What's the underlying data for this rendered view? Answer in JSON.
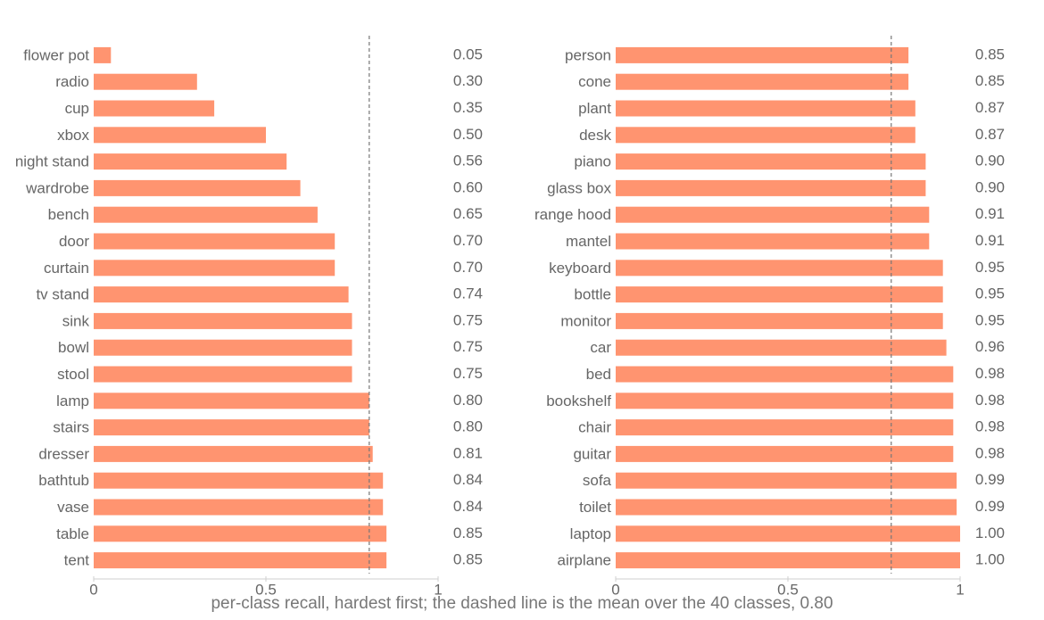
{
  "colors": {
    "bar": "#ff9470",
    "text": "#666666",
    "mean_line": "#777777",
    "axis": "#cfcfcf"
  },
  "caption": "per-class recall, hardest first; the dashed line is the mean over the 40 classes, 0.80",
  "chart_data": [
    {
      "type": "bar",
      "orientation": "horizontal",
      "categories": [
        "flower pot",
        "radio",
        "cup",
        "xbox",
        "night stand",
        "wardrobe",
        "bench",
        "door",
        "curtain",
        "tv stand",
        "sink",
        "bowl",
        "stool",
        "lamp",
        "stairs",
        "dresser",
        "bathtub",
        "vase",
        "table",
        "tent"
      ],
      "values": [
        0.05,
        0.3,
        0.35,
        0.5,
        0.56,
        0.6,
        0.65,
        0.7,
        0.7,
        0.74,
        0.75,
        0.75,
        0.75,
        0.8,
        0.8,
        0.81,
        0.84,
        0.84,
        0.85,
        0.85
      ],
      "value_labels": [
        "0.05",
        "0.30",
        "0.35",
        "0.50",
        "0.56",
        "0.60",
        "0.65",
        "0.70",
        "0.70",
        "0.74",
        "0.75",
        "0.75",
        "0.75",
        "0.80",
        "0.80",
        "0.81",
        "0.84",
        "0.84",
        "0.85",
        "0.85"
      ],
      "xlim": [
        0,
        1
      ],
      "xticks": [
        0,
        0.5,
        1
      ],
      "xtick_labels": [
        "0",
        "0.5",
        "1"
      ],
      "mean": 0.8,
      "grid": false
    },
    {
      "type": "bar",
      "orientation": "horizontal",
      "categories": [
        "person",
        "cone",
        "plant",
        "desk",
        "piano",
        "glass box",
        "range hood",
        "mantel",
        "keyboard",
        "bottle",
        "monitor",
        "car",
        "bed",
        "bookshelf",
        "chair",
        "guitar",
        "sofa",
        "toilet",
        "laptop",
        "airplane"
      ],
      "values": [
        0.85,
        0.85,
        0.87,
        0.87,
        0.9,
        0.9,
        0.91,
        0.91,
        0.95,
        0.95,
        0.95,
        0.96,
        0.98,
        0.98,
        0.98,
        0.98,
        0.99,
        0.99,
        1.0,
        1.0
      ],
      "value_labels": [
        "0.85",
        "0.85",
        "0.87",
        "0.87",
        "0.90",
        "0.90",
        "0.91",
        "0.91",
        "0.95",
        "0.95",
        "0.95",
        "0.96",
        "0.98",
        "0.98",
        "0.98",
        "0.98",
        "0.99",
        "0.99",
        "1.00",
        "1.00"
      ],
      "xlim": [
        0,
        1
      ],
      "xticks": [
        0,
        0.5,
        1
      ],
      "xtick_labels": [
        "0",
        "0.5",
        "1"
      ],
      "mean": 0.8,
      "grid": false
    }
  ]
}
